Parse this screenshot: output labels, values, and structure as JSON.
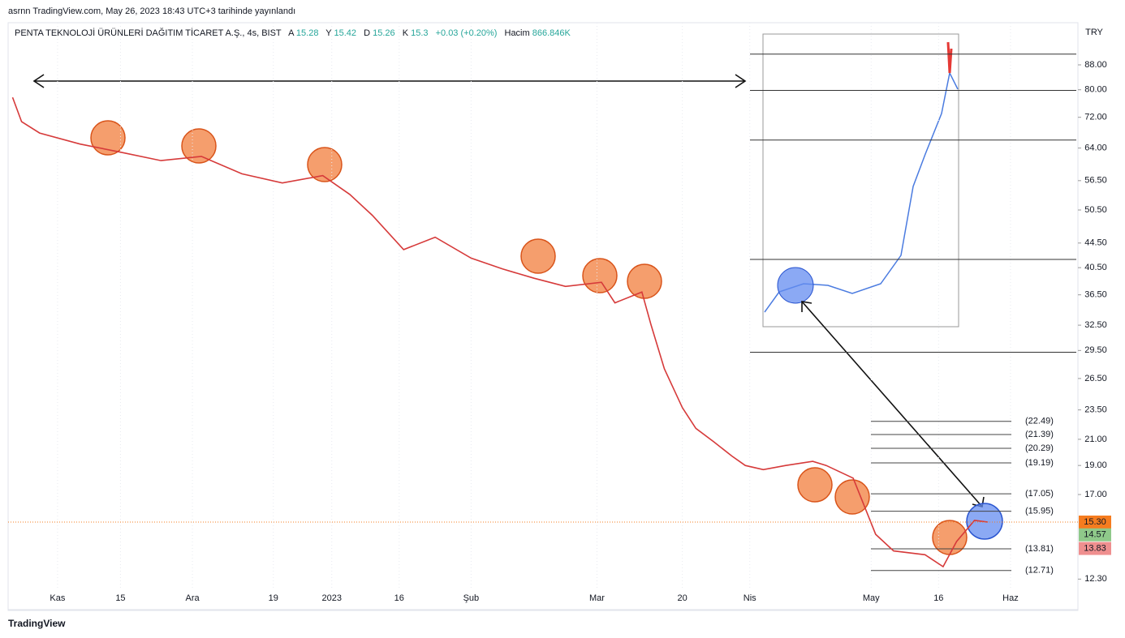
{
  "header": {
    "published": "asrnn TradingView.com, May 26, 2023 18:43 UTC+3 tarihinde yayınlandı",
    "footer": "TradingView"
  },
  "chart_data": {
    "type": "line",
    "symbol": "PENTA TEKNOLOJİ ÜRÜNLERİ DAĞITIM TİCARET A.Ş., 4s, BIST",
    "ohlc": [
      {
        "key": "A",
        "value": 15.28
      },
      {
        "key": "Y",
        "value": 15.42
      },
      {
        "key": "D",
        "value": 15.26
      },
      {
        "key": "K",
        "value": 15.3
      }
    ],
    "change": "+0.03 (+0.20%)",
    "volume_key": "Hacim",
    "volume": "866.846K",
    "currency": "TRY",
    "log_scale": true,
    "grid": true,
    "color": "#d63a3a",
    "x": [
      -3,
      -1,
      3,
      12,
      21,
      30,
      39,
      48,
      57,
      66,
      72,
      77,
      84,
      91,
      99,
      106,
      113,
      120,
      128,
      131,
      137,
      139,
      142,
      146,
      149,
      153,
      157,
      160,
      164,
      169,
      175,
      178,
      184,
      189,
      193,
      200,
      204,
      207,
      211,
      214
    ],
    "values": [
      77.7,
      70.8,
      67.8,
      65,
      63,
      61,
      62,
      58,
      56,
      57.6,
      53.6,
      49.5,
      43.4,
      45.5,
      42,
      40.3,
      38.9,
      37.7,
      38.3,
      35.4,
      36.9,
      32.6,
      27.5,
      23.7,
      21.9,
      20.8,
      19.7,
      19,
      18.7,
      19,
      19.3,
      19,
      18.1,
      14.6,
      13.7,
      13.5,
      12.9,
      14.2,
      15.4,
      15.3
    ],
    "xlim": [
      -4,
      234
    ],
    "ylim": [
      11.9,
      103.4
    ],
    "xticks": [
      {
        "value": 7,
        "label": "Kas"
      },
      {
        "value": 21,
        "label": "15"
      },
      {
        "value": 37,
        "label": "Ara"
      },
      {
        "value": 55,
        "label": "19"
      },
      {
        "value": 68,
        "label": "2023"
      },
      {
        "value": 83,
        "label": "16"
      },
      {
        "value": 99,
        "label": "Şub"
      },
      {
        "value": 127,
        "label": "Mar"
      },
      {
        "value": 146,
        "label": "20"
      },
      {
        "value": 161,
        "label": "Nis"
      },
      {
        "value": 188,
        "label": "May"
      },
      {
        "value": 203,
        "label": "16"
      },
      {
        "value": 219,
        "label": "Haz"
      }
    ],
    "yticks": [
      {
        "value": 88,
        "label": "88.00"
      },
      {
        "value": 80,
        "label": "80.00"
      },
      {
        "value": 72,
        "label": "72.00"
      },
      {
        "value": 64,
        "label": "64.00"
      },
      {
        "value": 56.5,
        "label": "56.50"
      },
      {
        "value": 50.5,
        "label": "50.50"
      },
      {
        "value": 44.5,
        "label": "44.50"
      },
      {
        "value": 40.5,
        "label": "40.50"
      },
      {
        "value": 36.5,
        "label": "36.50"
      },
      {
        "value": 32.5,
        "label": "32.50"
      },
      {
        "value": 29.5,
        "label": "29.50"
      },
      {
        "value": 26.5,
        "label": "26.50"
      },
      {
        "value": 23.5,
        "label": "23.50"
      },
      {
        "value": 21,
        "label": "21.00"
      },
      {
        "value": 19,
        "label": "19.00"
      },
      {
        "value": 17,
        "label": "17.00"
      },
      {
        "value": 12.3,
        "label": "12.30"
      }
    ],
    "price_labels": [
      {
        "value": 15.3,
        "label": "15.30",
        "color": "#f57c1f"
      },
      {
        "value": 14.57,
        "label": "14.57",
        "color": "#8fc98a"
      },
      {
        "value": 13.83,
        "label": "13.83",
        "color": "#ef8f8f"
      }
    ],
    "fib_levels": [
      {
        "value": 22.49,
        "label": "(22.49)"
      },
      {
        "value": 21.39,
        "label": "(21.39)"
      },
      {
        "value": 20.29,
        "label": "(20.29)"
      },
      {
        "value": 19.19,
        "label": "(19.19)"
      },
      {
        "value": 17.05,
        "label": "(17.05)"
      },
      {
        "value": 15.95,
        "label": "(15.95)"
      },
      {
        "value": 13.81,
        "label": "(13.81)"
      },
      {
        "value": 12.71,
        "label": "(12.71)"
      }
    ],
    "hlines": [
      91.7,
      79.8,
      66,
      41.8,
      29.3
    ]
  }
}
